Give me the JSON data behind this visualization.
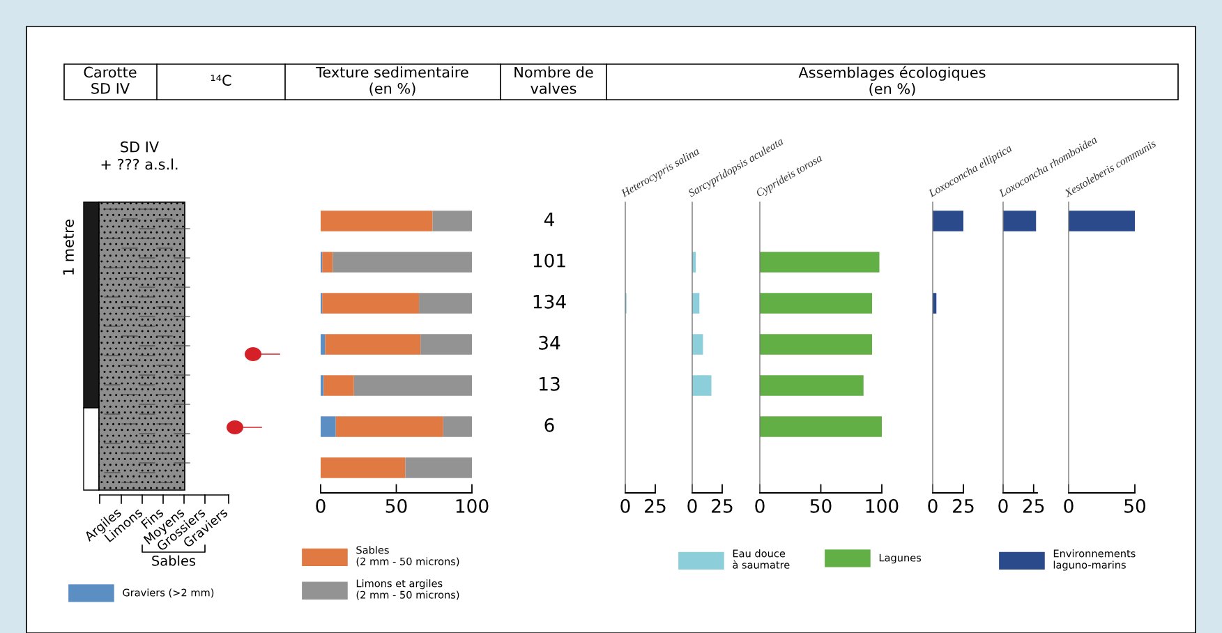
{
  "chart_data": [
    {
      "type": "other",
      "annotations": [
        "Carotte\nSD IV",
        "¹⁴C",
        "Texture sedimentaire\n(en %)",
        "Nombre de\nvalves",
        "Assemblages écologiques\n(en %)",
        "SD IV\n+ ??? a.s.l.",
        "1 metre",
        "Argiles",
        "Limons",
        "Fins",
        "Moyens",
        "Grossiers",
        "Graviers",
        "Sables"
      ]
    },
    {
      "type": "bar",
      "orientation": "horizontal",
      "stacked": true,
      "categories": [
        null,
        null,
        null,
        null,
        null,
        null,
        null
      ],
      "xlim": [
        0,
        100
      ],
      "xticks": [
        0,
        50,
        100
      ],
      "legend": "bottom",
      "series": [
        {
          "name": "Graviers (>2 mm)",
          "color": "#5b8fc4",
          "values": [
            0,
            1,
            1,
            3,
            2,
            10,
            0
          ]
        },
        {
          "name": "Sables\n(2 mm - 50 microns)",
          "color": "#e07a42",
          "values": [
            74,
            7,
            64,
            63,
            20,
            71,
            56
          ]
        },
        {
          "name": "Limons et argiles\n(2 mm - 50 microns)",
          "color": "#939393",
          "values": [
            26,
            92,
            35,
            34,
            78,
            19,
            44
          ]
        }
      ]
    },
    {
      "type": "other",
      "categories": [
        null,
        null,
        null,
        null,
        null,
        null,
        null
      ],
      "values": [
        4,
        101,
        134,
        34,
        13,
        6,
        null
      ],
      "data_labels": true
    },
    {
      "type": "bar",
      "orientation": "horizontal",
      "title": "Heterocypris salina",
      "categories": [
        null,
        null,
        null,
        null,
        null,
        null,
        null
      ],
      "xlim": [
        0,
        25
      ],
      "xticks": [
        0,
        25
      ],
      "legend": "bottom",
      "series": [
        {
          "name": "Eau douce\nà saumatre",
          "color": "#8ccfdb",
          "values": [
            null,
            null,
            1,
            null,
            null,
            null,
            null
          ]
        }
      ]
    },
    {
      "type": "bar",
      "orientation": "horizontal",
      "title": "Sarcypridopsis aculeata",
      "categories": [
        null,
        null,
        null,
        null,
        null,
        null,
        null
      ],
      "xlim": [
        0,
        25
      ],
      "xticks": [
        0,
        25
      ],
      "series": [
        {
          "color": "#8ccfdb",
          "values": [
            null,
            3,
            6,
            9,
            16,
            null,
            null
          ]
        }
      ]
    },
    {
      "type": "bar",
      "orientation": "horizontal",
      "title": "Cyprideis torosa",
      "categories": [
        null,
        null,
        null,
        null,
        null,
        null,
        null
      ],
      "xlim": [
        0,
        100
      ],
      "xticks": [
        0,
        50,
        100
      ],
      "legend": "bottom",
      "series": [
        {
          "name": "Lagunes",
          "color": "#62b045",
          "values": [
            null,
            98,
            92,
            92,
            85,
            100,
            null
          ]
        }
      ]
    },
    {
      "type": "bar",
      "orientation": "horizontal",
      "title": "Loxoconcha elliptica",
      "categories": [
        null,
        null,
        null,
        null,
        null,
        null,
        null
      ],
      "xlim": [
        0,
        25
      ],
      "xticks": [
        0,
        25
      ],
      "legend": "bottom",
      "series": [
        {
          "name": "Environnements\nlaguno-marins",
          "color": "#2a4a8c",
          "values": [
            25,
            null,
            3,
            null,
            null,
            null,
            null
          ]
        }
      ]
    },
    {
      "type": "bar",
      "orientation": "horizontal",
      "title": "Loxoconcha rhomboidea",
      "categories": [
        null,
        null,
        null,
        null,
        null,
        null,
        null
      ],
      "xlim": [
        0,
        28
      ],
      "xticks": [
        0,
        25
      ],
      "series": [
        {
          "color": "#2a4a8c",
          "values": [
            27,
            null,
            null,
            null,
            null,
            null,
            null
          ]
        }
      ]
    },
    {
      "type": "bar",
      "orientation": "horizontal",
      "title": "Xestoleberis communis",
      "categories": [
        null,
        null,
        null,
        null,
        null,
        null,
        null
      ],
      "xlim": [
        0,
        50
      ],
      "xticks": [
        0,
        50
      ],
      "series": [
        {
          "color": "#2a4a8c",
          "values": [
            50,
            null,
            null,
            null,
            null,
            null,
            null
          ]
        }
      ]
    }
  ]
}
